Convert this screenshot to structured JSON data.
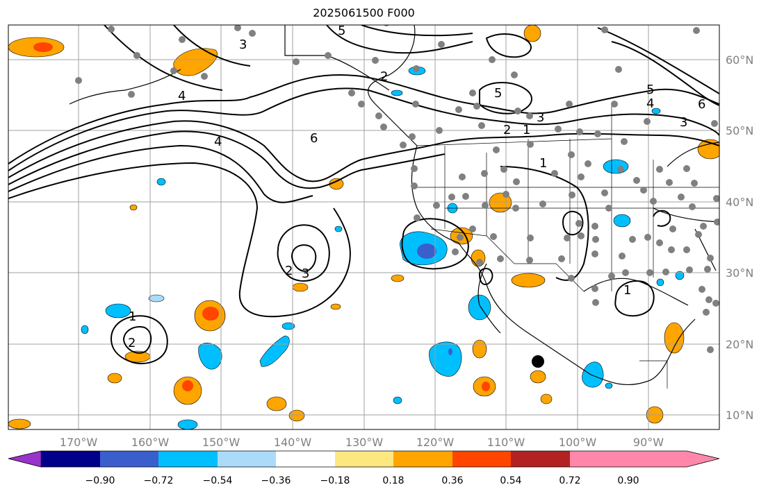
{
  "title": "2025061500 F000",
  "lon_labels": [
    "170°W",
    "160°W",
    "150°W",
    "140°W",
    "130°W",
    "120°W",
    "110°W",
    "100°W",
    "90°W"
  ],
  "lat_labels": [
    "60°N",
    "50°N",
    "40°N",
    "30°N",
    "20°N",
    "10°N"
  ],
  "colorbar": {
    "colors": [
      "#9933cc",
      "#00008b",
      "#3a5fcd",
      "#00bfff",
      "#aadcfa",
      "#ffffff",
      "#fde880",
      "#ffa500",
      "#ff4500",
      "#b22222",
      "#ff88aa"
    ],
    "labels": [
      "−0.90",
      "−0.72",
      "−0.54",
      "−0.36",
      "−0.18",
      "0.18",
      "0.36",
      "0.54",
      "0.72",
      "0.90"
    ]
  },
  "contour_labels": [
    "5",
    "3",
    "2",
    "2",
    "5",
    "3",
    "1",
    "1",
    "5",
    "4",
    "3",
    "6",
    "4",
    "6",
    "4",
    "2",
    "3",
    "1",
    "1",
    "2"
  ],
  "marker": "black-dot"
}
